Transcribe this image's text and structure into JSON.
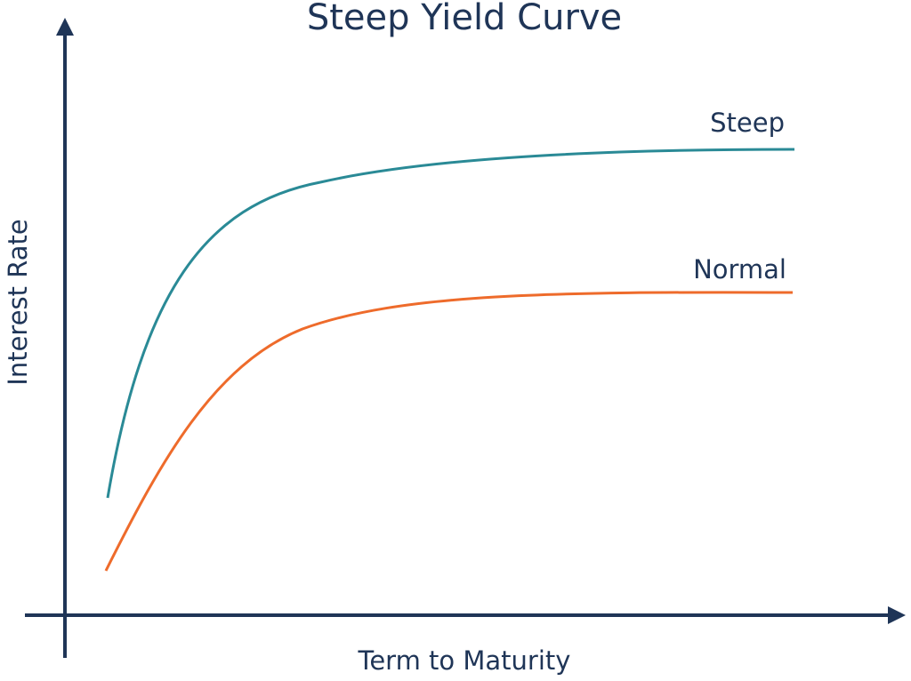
{
  "title": "Steep Yield Curve",
  "axes": {
    "y_label": "Interest Rate",
    "x_label": "Term to Maturity"
  },
  "curves": [
    {
      "label": "Steep"
    },
    {
      "label": "Normal"
    }
  ]
}
